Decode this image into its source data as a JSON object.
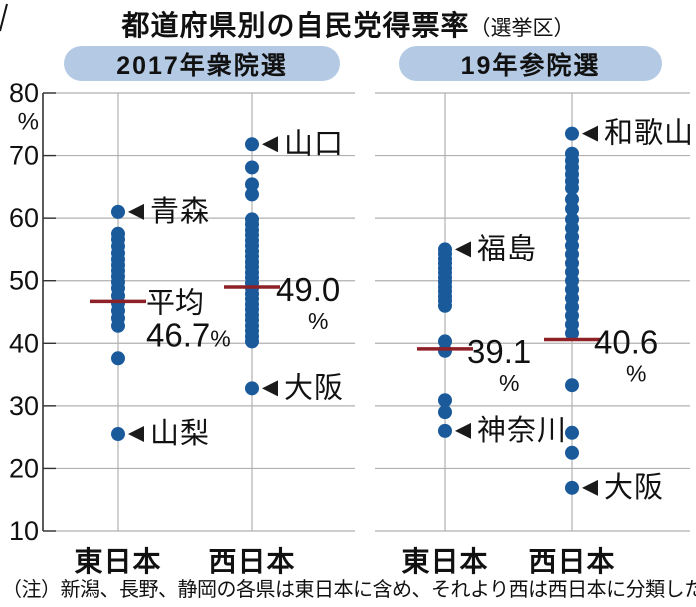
{
  "title": {
    "main": "都道府県別の自民党得票率",
    "suffix": "（選挙区）"
  },
  "note": "（注）新潟、長野、静岡の各県は東日本に含め、それより西は西日本に分類した",
  "colors": {
    "dot": "#1a5a9b",
    "mean_line": "#8e2028",
    "badge_bg": "#b4cae4",
    "gridline": "#b0b0b0",
    "axis": "#333333",
    "text": "#111111"
  },
  "chart_data": {
    "type": "scatter",
    "title": "都道府県別の自民党得票率（選挙区）",
    "ylabel": "%",
    "ylim": [
      10,
      80
    ],
    "yticks": [
      80,
      70,
      60,
      50,
      40,
      30,
      20,
      10
    ],
    "grid": true,
    "legend_position": "none",
    "note": "（注）新潟、長野、静岡の各県は東日本に含め、それより西は西日本に分類した",
    "panels": [
      {
        "label": "2017年衆院選",
        "columns": [
          {
            "category": "東日本",
            "mean": 46.7,
            "mean_display": "46.7",
            "mean_prefix": "平均",
            "unit": "%",
            "values": [
              61.0,
              57.5,
              56.6,
              55.5,
              54.4,
              53.4,
              52.5,
              51.6,
              50.7,
              49.8,
              48.8,
              47.6,
              46.4,
              45.2,
              44.0,
              42.8,
              37.6,
              25.5
            ],
            "annotations": [
              {
                "label": "青森",
                "value": 61.0
              },
              {
                "label": "山梨",
                "value": 25.5
              }
            ]
          },
          {
            "category": "西日本",
            "mean": 49.0,
            "mean_display": "49.0",
            "unit": "%",
            "values": [
              71.8,
              68.1,
              65.4,
              63.8,
              59.8,
              59.0,
              58.1,
              57.3,
              56.4,
              55.6,
              54.7,
              53.9,
              53.0,
              52.2,
              51.3,
              50.5,
              49.6,
              48.8,
              47.9,
              47.1,
              46.2,
              45.4,
              44.5,
              43.7,
              42.8,
              42.0,
              41.1,
              40.3,
              32.8
            ],
            "annotations": [
              {
                "label": "山口",
                "value": 71.8
              },
              {
                "label": "大阪",
                "value": 32.8
              }
            ]
          }
        ]
      },
      {
        "label": "19年参院選",
        "columns": [
          {
            "category": "東日本",
            "mean": 39.1,
            "mean_display": "39.1",
            "unit": "%",
            "values": [
              55.0,
              54.3,
              53.5,
              52.8,
              52.0,
              51.3,
              50.5,
              49.8,
              49.0,
              48.3,
              47.5,
              46.8,
              46.0,
              40.3,
              38.8,
              30.9,
              29.0,
              26.0
            ],
            "annotations": [
              {
                "label": "福島",
                "value": 55.0
              },
              {
                "label": "神奈川",
                "value": 26.0
              }
            ]
          },
          {
            "category": "西日本",
            "mean": 40.6,
            "mean_display": "40.6",
            "unit": "%",
            "values": [
              73.5,
              70.3,
              69.2,
              68.1,
              67.0,
              65.9,
              64.8,
              63.0,
              61.5,
              59.8,
              58.4,
              57.0,
              55.6,
              54.2,
              52.8,
              51.4,
              50.0,
              48.6,
              47.2,
              45.8,
              44.4,
              43.0,
              41.6,
              33.3,
              25.7,
              22.5,
              16.9
            ],
            "annotations": [
              {
                "label": "和歌山",
                "value": 73.5
              },
              {
                "label": "大阪",
                "value": 16.9
              }
            ]
          }
        ]
      }
    ]
  }
}
